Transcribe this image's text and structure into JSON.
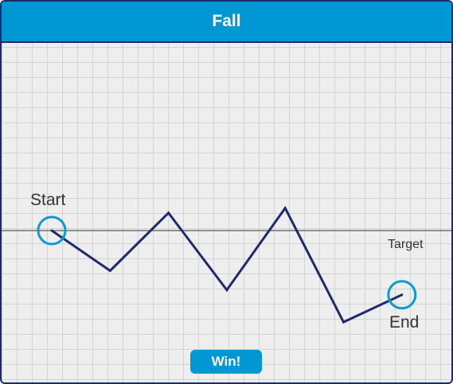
{
  "header": {
    "title": "Fall"
  },
  "labels": {
    "start": "Start",
    "end": "End",
    "target": "Target"
  },
  "button": {
    "win_label": "Win!"
  },
  "colors": {
    "header": "#0098d4",
    "path": "#1f2a6e",
    "marker": "#0a9bd0",
    "target_line": "#555555"
  },
  "chart_data": {
    "type": "line",
    "x": [
      0,
      1,
      2,
      3,
      4,
      5,
      6
    ],
    "y": [
      0,
      -2.5,
      1.1,
      -3.7,
      1.4,
      -5.7,
      -4.0
    ],
    "target": 0
  }
}
